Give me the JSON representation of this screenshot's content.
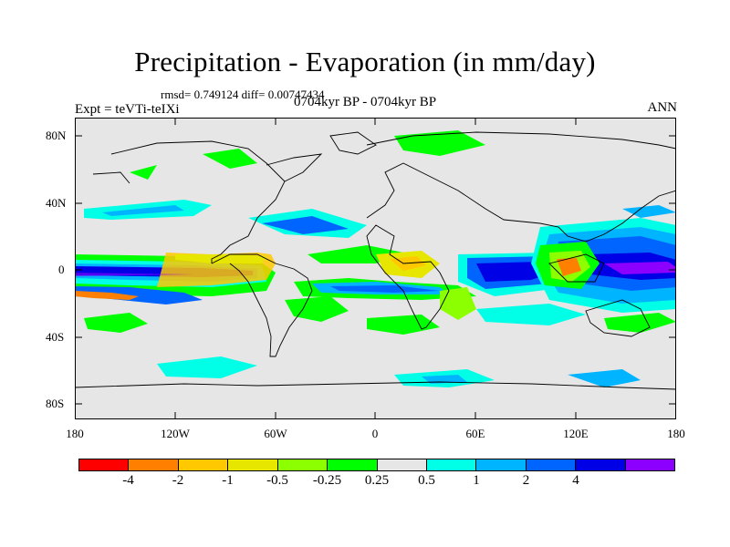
{
  "title": "Precipitation - Evaporation (in mm/day)",
  "stats": "rmsd= 0.749124 diff= 0.00747434",
  "expt": "Expt = teVTi-teIXi",
  "period": "0704kyr BP - 0704kyr BP",
  "season": "ANN",
  "lat_ticks": [
    "80N",
    "40N",
    "0",
    "40S",
    "80S"
  ],
  "lon_ticks": [
    "180",
    "120W",
    "60W",
    "0",
    "60E",
    "120E",
    "180"
  ],
  "colorbar": {
    "colors": [
      "#ff0000",
      "#ff8000",
      "#ffc800",
      "#e6e600",
      "#8cff00",
      "#00ff00",
      "#e6e6e6",
      "#00ffe6",
      "#00b4ff",
      "#0064ff",
      "#0000e6",
      "#8c00ff"
    ],
    "labels": [
      "-4",
      "-2",
      "-1",
      "-0.5",
      "-0.25",
      "0.25",
      "0.5",
      "1",
      "2",
      "4"
    ]
  },
  "colors": {
    "neutral": "#e6e6e6",
    "coast": "#000000"
  }
}
